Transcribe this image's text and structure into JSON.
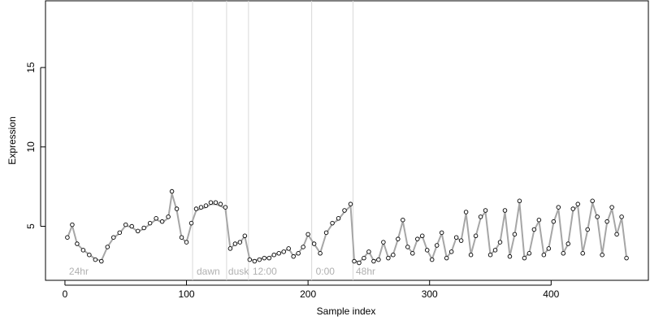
{
  "chart_data": {
    "type": "line",
    "xlabel": "Sample index",
    "ylabel": "Expression",
    "xlim": [
      -16,
      480
    ],
    "ylim": [
      1.6,
      19.2
    ],
    "x_ticks": [
      0,
      100,
      200,
      300,
      400
    ],
    "y_ticks": [
      5,
      10,
      15
    ],
    "phase_boundaries": [
      105,
      133,
      151,
      203,
      237
    ],
    "phase_labels": [
      {
        "text": "24hr",
        "x": 2
      },
      {
        "text": "dawn",
        "x": 107
      },
      {
        "text": "dusk",
        "x": 133
      },
      {
        "text": "12:00",
        "x": 153
      },
      {
        "text": "0:00",
        "x": 205
      },
      {
        "text": "48hr",
        "x": 238
      }
    ],
    "colors": {
      "fitted_line": "#a6a6a6",
      "residual_positive": "#f0a818",
      "residual_negative": "#6f95d6",
      "point_fill": "#ffffff",
      "point_stroke": "#000000",
      "phase_boundary": "#d9d9d9",
      "phase_label": "#b0b0b0"
    },
    "series": [
      {
        "type": "points",
        "x": [
          2,
          6,
          10,
          15,
          20,
          25,
          30,
          35,
          40,
          45,
          50,
          55,
          60,
          65,
          70,
          75,
          80,
          85,
          88,
          92,
          96,
          100,
          104,
          108,
          112,
          116,
          120,
          124,
          128,
          132,
          136,
          140,
          144,
          148,
          152,
          156,
          160,
          164,
          168,
          172,
          176,
          180,
          184,
          188,
          192,
          196,
          200,
          205,
          210,
          215,
          220,
          225,
          230,
          235,
          238,
          242,
          246,
          250,
          254,
          258,
          262,
          266,
          270,
          274,
          278,
          282,
          286,
          290,
          294,
          298,
          302,
          306,
          310,
          314,
          318,
          322,
          326,
          330,
          334,
          338,
          342,
          346,
          350,
          354,
          358,
          362,
          366,
          370,
          374,
          378,
          382,
          386,
          390,
          394,
          398,
          402,
          406,
          410,
          414,
          418,
          422,
          426,
          430,
          434,
          438,
          442,
          446,
          450,
          454,
          458,
          462
        ],
        "y": [
          4.3,
          5.1,
          3.9,
          3.5,
          3.2,
          2.9,
          2.8,
          3.7,
          4.3,
          4.6,
          5.1,
          5.0,
          4.7,
          4.9,
          5.2,
          5.5,
          5.3,
          5.6,
          7.2,
          6.1,
          4.3,
          4.0,
          5.2,
          6.1,
          6.2,
          6.3,
          6.5,
          6.5,
          6.4,
          6.2,
          3.6,
          3.9,
          4.0,
          4.4,
          2.9,
          2.8,
          2.9,
          3.0,
          3.0,
          3.2,
          3.3,
          3.4,
          3.6,
          3.1,
          3.3,
          3.7,
          4.5,
          3.9,
          3.3,
          4.6,
          5.2,
          5.5,
          6.0,
          6.4,
          2.8,
          2.7,
          3.0,
          3.4,
          2.8,
          2.9,
          4.0,
          3.0,
          3.2,
          4.2,
          5.4,
          3.7,
          3.3,
          4.2,
          4.4,
          3.5,
          2.9,
          3.8,
          4.6,
          3.0,
          3.4,
          4.3,
          4.1,
          5.9,
          3.2,
          4.4,
          5.6,
          6.0,
          3.2,
          3.5,
          4.0,
          6.0,
          3.1,
          4.5,
          6.6,
          3.0,
          3.3,
          4.8,
          5.4,
          3.2,
          3.6,
          5.3,
          6.2,
          3.3,
          3.9,
          6.1,
          6.4,
          3.3,
          4.8,
          6.6,
          5.6,
          3.2,
          5.3,
          6.2,
          4.5,
          5.6,
          3.0
        ]
      }
    ]
  }
}
